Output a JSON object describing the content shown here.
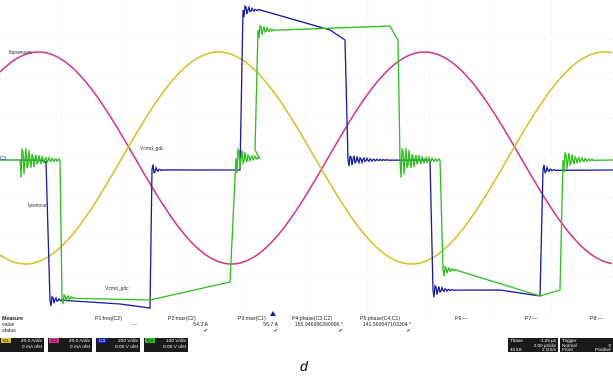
{
  "caption": "d",
  "waveform_labels": {
    "pink": "Ibpwmsan",
    "ch1_mid": "C1",
    "blue_upper": "Vcmd_gdc",
    "blue_lower": "Vcmd_gdc",
    "yellow": "Ipwmcurr"
  },
  "colors": {
    "pink": "#d43a8c",
    "yellow": "#d2c42a",
    "green": "#2ebf1c",
    "blue": "#1a1aa8",
    "background": "#ffffff",
    "grid": "#dddddd"
  },
  "measure": {
    "row_labels": [
      "Measure",
      "value",
      "status"
    ],
    "columns": [
      {
        "name": "P1:freq(C2)",
        "value": "---",
        "status": ""
      },
      {
        "name": "P2:max(C2)",
        "value": "54.3 A",
        "status": "✔"
      },
      {
        "name": "P3:max(C1)",
        "value": "56.7 A",
        "status": "✔"
      },
      {
        "name": "P4:phase(C3,C2)",
        "value": "155.946996390996 °",
        "status": "✔"
      },
      {
        "name": "P5:phase(C4,C1)",
        "value": "141.569547103304 °",
        "status": "✔"
      },
      {
        "name": "P6:---",
        "value": "",
        "status": ""
      },
      {
        "name": "P7:---",
        "value": "",
        "status": ""
      },
      {
        "name": "P8:---",
        "value": "",
        "status": ""
      }
    ]
  },
  "channels": [
    {
      "tag": "C1",
      "tag_color": "#d2c42a",
      "scale": "20.0 A/div",
      "offset": "0 mA ofst"
    },
    {
      "tag": "C2",
      "tag_color": "#d43a8c",
      "scale": "20.0 A/div",
      "offset": "0 mA ofst"
    },
    {
      "tag": "C3",
      "tag_color": "#1a1aa8",
      "scale": "200 V/div",
      "offset": "0.00 V ofst"
    },
    {
      "tag": "C4",
      "tag_color": "#2ebf1c",
      "scale": "100 V/div",
      "offset": "0.00 V ofst"
    }
  ],
  "timebase": {
    "title": "Tbase",
    "delay": "-1.29 μs",
    "per_div": "2.00 μs/div",
    "samples": "40 kS",
    "rate": "2 GS/s"
  },
  "trigger": {
    "title": "Trigger",
    "mode": "Normal",
    "position": "Front",
    "level": "0",
    "coupling": "Positive"
  }
}
